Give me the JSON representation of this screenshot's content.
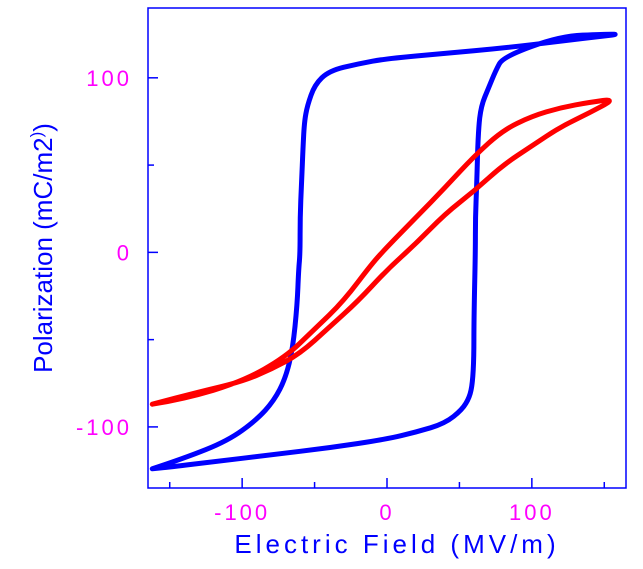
{
  "chart_data": {
    "type": "line",
    "title": "",
    "xlabel": "Electric Field (MV/m)",
    "ylabel": "Polarization (mC/m2)",
    "xlim": [
      -165,
      165
    ],
    "ylim": [
      -135,
      140
    ],
    "x_ticks": [
      {
        "value": -100,
        "label": "-100"
      },
      {
        "value": 0,
        "label": "0"
      },
      {
        "value": 100,
        "label": "100"
      }
    ],
    "y_ticks": [
      {
        "value": -100,
        "label": "-100"
      },
      {
        "value": 0,
        "label": "0"
      },
      {
        "value": 100,
        "label": "100"
      }
    ],
    "grid": false,
    "colors": {
      "axis": "#0000ff",
      "tick_labels": "#ff00ff",
      "series_blue": "#0000ff",
      "series_red": "#ff0000"
    },
    "series": [
      {
        "color": "#0000ff",
        "x": [
          -162,
          -140,
          -110,
          -90,
          -78,
          -70,
          -65,
          -62,
          -61,
          -60,
          -60,
          -59,
          -58,
          -57,
          -55,
          -50,
          -40,
          -20,
          0,
          40,
          80,
          120,
          150,
          160,
          150,
          120,
          80,
          75,
          70,
          65,
          63,
          62,
          61,
          61,
          60,
          60,
          59,
          57,
          52,
          40,
          20,
          0,
          -40,
          -80,
          -120,
          -150,
          -162
        ],
        "y": [
          -124,
          -118,
          -108,
          -96,
          -85,
          -72,
          -55,
          -30,
          -10,
          0,
          20,
          40,
          60,
          75,
          84,
          96,
          104,
          108,
          111,
          114,
          117,
          121,
          124,
          125,
          125,
          124,
          112,
          104,
          94,
          84,
          70,
          40,
          20,
          0,
          -40,
          -60,
          -75,
          -83,
          -90,
          -98,
          -103,
          -107,
          -112,
          -116,
          -120,
          -123,
          -124
        ]
      },
      {
        "color": "#ff0000",
        "x": [
          -162,
          -140,
          -100,
          -70,
          -50,
          -30,
          -10,
          0,
          20,
          40,
          60,
          80,
          100,
          120,
          140,
          158,
          140,
          120,
          100,
          80,
          60,
          40,
          20,
          0,
          -20,
          -40,
          -60,
          -80,
          -100,
          -130,
          -162
        ],
        "y": [
          -87,
          -84,
          -74,
          -60,
          -44,
          -28,
          -6,
          3,
          20,
          37,
          55,
          70,
          78,
          83,
          86,
          88,
          80,
          72,
          61,
          50,
          35,
          22,
          5,
          -10,
          -28,
          -43,
          -58,
          -67,
          -74,
          -80,
          -87
        ]
      }
    ]
  }
}
